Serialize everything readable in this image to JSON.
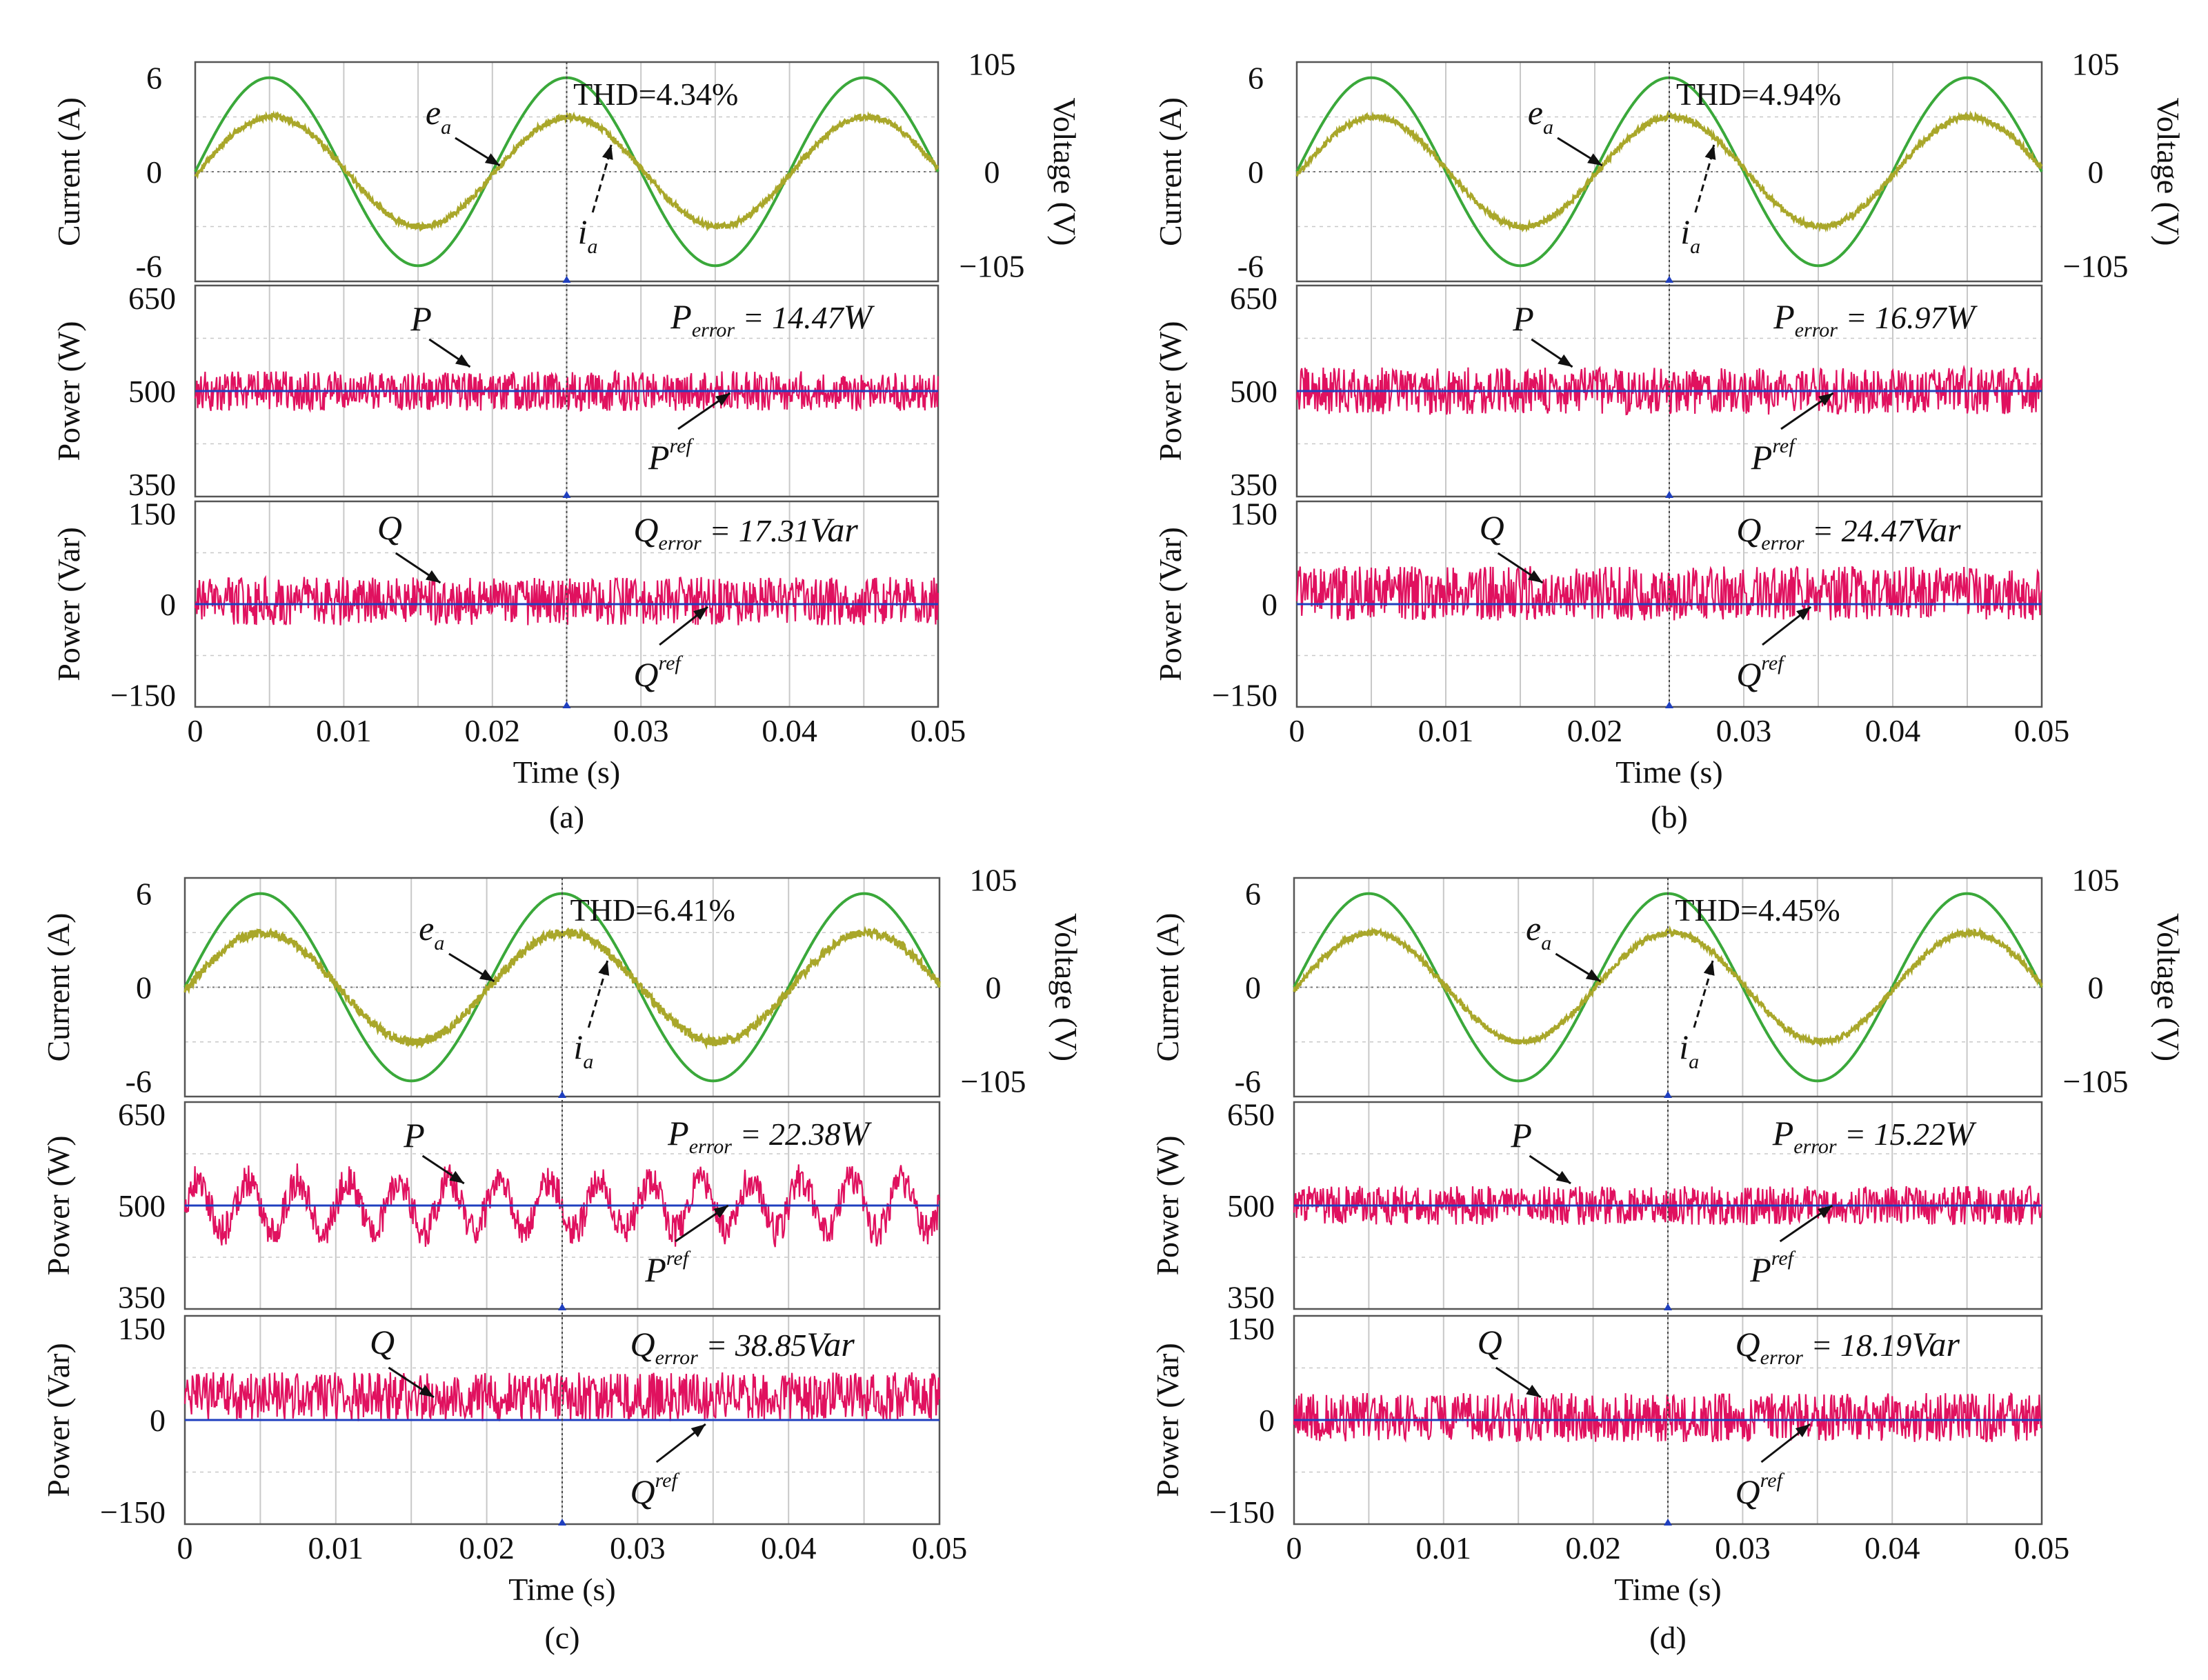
{
  "chart_data": [
    {
      "type": "line",
      "subplot": "(a)",
      "xlabel": "Time (s)",
      "x_ticks": [
        "0",
        "0.01",
        "0.02",
        "0.03",
        "0.04",
        "0.05"
      ],
      "xlim": [
        0,
        0.05
      ],
      "current_panel": {
        "ylabel": "Current (A)",
        "ylabel_right": "Voltage (V)",
        "ylim": [
          -7,
          7
        ],
        "y_ticks": [
          "6",
          "0",
          "-6"
        ],
        "y_ticks_right": [
          "105",
          "0",
          "−105"
        ],
        "series": [
          {
            "name": "e_a",
            "amplitude_A": 6.0,
            "freq_hz": 50,
            "color": "#3aa83a"
          },
          {
            "name": "i_a",
            "amplitude_A": 3.5,
            "freq_hz": 50,
            "ripple": 0.18,
            "color": "#a9a72a"
          }
        ],
        "labels": {
          "ea": "e",
          "ea_sub": "a",
          "ia": "i",
          "ia_sub": "a"
        },
        "thd": "THD=4.34%"
      },
      "p_panel": {
        "ylabel": "Power (W)",
        "ylim": [
          330,
          670
        ],
        "y_ticks": [
          "650",
          "500",
          "350"
        ],
        "ref": 500,
        "noise": 32,
        "osc": 0,
        "label": "P",
        "ref_label": "P",
        "ref_sup": "ref",
        "error": {
          "main": "P",
          "sub": "error",
          "value": " = 14.47",
          "unit": "W"
        }
      },
      "q_panel": {
        "ylabel": "Power (Var)",
        "ylim": [
          -170,
          170
        ],
        "y_ticks": [
          "150",
          "0",
          "−150"
        ],
        "ref": 0,
        "noise": 40,
        "offset": 5,
        "osc": 0,
        "label": "Q",
        "ref_label": "Q",
        "ref_sup": "ref",
        "error": {
          "main": "Q",
          "sub": "error",
          "value": " = 17.31",
          "unit": "Var"
        }
      }
    },
    {
      "type": "line",
      "subplot": "(b)",
      "xlabel": "Time (s)",
      "x_ticks": [
        "0",
        "0.01",
        "0.02",
        "0.03",
        "0.04",
        "0.05"
      ],
      "xlim": [
        0,
        0.05
      ],
      "current_panel": {
        "ylabel": "Current (A)",
        "ylabel_right": "Voltage (V)",
        "ylim": [
          -7,
          7
        ],
        "y_ticks": [
          "6",
          "0",
          "-6"
        ],
        "y_ticks_right": [
          "105",
          "0",
          "−105"
        ],
        "series": [
          {
            "name": "e_a",
            "amplitude_A": 6.0,
            "freq_hz": 50,
            "color": "#3aa83a"
          },
          {
            "name": "i_a",
            "amplitude_A": 3.5,
            "freq_hz": 50,
            "ripple": 0.18,
            "color": "#a9a72a"
          }
        ],
        "labels": {
          "ea": "e",
          "ea_sub": "a",
          "ia": "i",
          "ia_sub": "a"
        },
        "thd": "THD=4.94%"
      },
      "p_panel": {
        "ylabel": "Power (W)",
        "ylim": [
          330,
          670
        ],
        "y_ticks": [
          "650",
          "500",
          "350"
        ],
        "ref": 500,
        "noise": 38,
        "osc": 0,
        "label": "P",
        "ref_label": "P",
        "ref_sup": "ref",
        "error": {
          "main": "P",
          "sub": "error",
          "value": " = 16.97",
          "unit": "W"
        }
      },
      "q_panel": {
        "ylabel": "Power (Var)",
        "ylim": [
          -170,
          170
        ],
        "y_ticks": [
          "150",
          "0",
          "−150"
        ],
        "ref": 0,
        "noise": 45,
        "offset": 18,
        "osc": 0,
        "label": "Q",
        "ref_label": "Q",
        "ref_sup": "ref",
        "error": {
          "main": "Q",
          "sub": "error",
          "value": " = 24.47",
          "unit": "Var"
        }
      }
    },
    {
      "type": "line",
      "subplot": "(c)",
      "xlabel": "Time (s)",
      "x_ticks": [
        "0",
        "0.01",
        "0.02",
        "0.03",
        "0.04",
        "0.05"
      ],
      "xlim": [
        0,
        0.05
      ],
      "current_panel": {
        "ylabel": "Current (A)",
        "ylabel_right": "Voltage (V)",
        "ylim": [
          -7,
          7
        ],
        "y_ticks": [
          "6",
          "0",
          "-6"
        ],
        "y_ticks_right": [
          "105",
          "0",
          "−105"
        ],
        "series": [
          {
            "name": "e_a",
            "amplitude_A": 6.0,
            "freq_hz": 50,
            "color": "#3aa83a"
          },
          {
            "name": "i_a",
            "amplitude_A": 3.5,
            "freq_hz": 50,
            "ripple": 0.28,
            "color": "#a9a72a"
          }
        ],
        "labels": {
          "ea": "e",
          "ea_sub": "a",
          "ia": "i",
          "ia_sub": "a"
        },
        "thd": "THD=6.41%"
      },
      "p_panel": {
        "ylabel": "Power (W)",
        "ylim": [
          330,
          670
        ],
        "y_ticks": [
          "650",
          "500",
          "350"
        ],
        "ref": 500,
        "noise": 28,
        "osc": 42,
        "label": "P",
        "ref_label": "P",
        "ref_sup": "ref",
        "error": {
          "main": "P",
          "sub": "error",
          "value": " = 22.38",
          "unit": "W"
        }
      },
      "q_panel": {
        "ylabel": "Power (Var)",
        "ylim": [
          -170,
          170
        ],
        "y_ticks": [
          "150",
          "0",
          "−150"
        ],
        "ref": 0,
        "noise": 40,
        "offset": 38,
        "osc": 0,
        "label": "Q",
        "ref_label": "Q",
        "ref_sup": "ref",
        "error": {
          "main": "Q",
          "sub": "error",
          "value": " = 38.85",
          "unit": "Var"
        }
      }
    },
    {
      "type": "line",
      "subplot": "(d)",
      "xlabel": "Time (s)",
      "x_ticks": [
        "0",
        "0.01",
        "0.02",
        "0.03",
        "0.04",
        "0.05"
      ],
      "xlim": [
        0,
        0.05
      ],
      "current_panel": {
        "ylabel": "Current (A)",
        "ylabel_right": "Voltage (V)",
        "ylim": [
          -7,
          7
        ],
        "y_ticks": [
          "6",
          "0",
          "-6"
        ],
        "y_ticks_right": [
          "105",
          "0",
          "−105"
        ],
        "series": [
          {
            "name": "e_a",
            "amplitude_A": 6.0,
            "freq_hz": 50,
            "color": "#3aa83a"
          },
          {
            "name": "i_a",
            "amplitude_A": 3.5,
            "freq_hz": 50,
            "ripple": 0.18,
            "color": "#a9a72a"
          }
        ],
        "labels": {
          "ea": "e",
          "ea_sub": "a",
          "ia": "i",
          "ia_sub": "a"
        },
        "thd": "THD=4.45%"
      },
      "p_panel": {
        "ylabel": "Power (W)",
        "ylim": [
          330,
          670
        ],
        "y_ticks": [
          "650",
          "500",
          "350"
        ],
        "ref": 500,
        "noise": 32,
        "osc": 0,
        "label": "P",
        "ref_label": "P",
        "ref_sup": "ref",
        "error": {
          "main": "P",
          "sub": "error",
          "value": " = 15.22",
          "unit": "W"
        }
      },
      "q_panel": {
        "ylabel": "Power (Var)",
        "ylim": [
          -170,
          170
        ],
        "y_ticks": [
          "150",
          "0",
          "−150"
        ],
        "ref": 0,
        "noise": 40,
        "offset": 4,
        "osc": 0,
        "label": "Q",
        "ref_label": "Q",
        "ref_sup": "ref",
        "error": {
          "main": "Q",
          "sub": "error",
          "value": " = 18.19",
          "unit": "Var"
        }
      }
    }
  ],
  "colors": {
    "grid": "#c8c8c8",
    "frame": "#555555",
    "power_trace": "#e0115f",
    "ref_line": "#1f3fbf",
    "zero_line": "#777777",
    "cursor": "#444444"
  }
}
